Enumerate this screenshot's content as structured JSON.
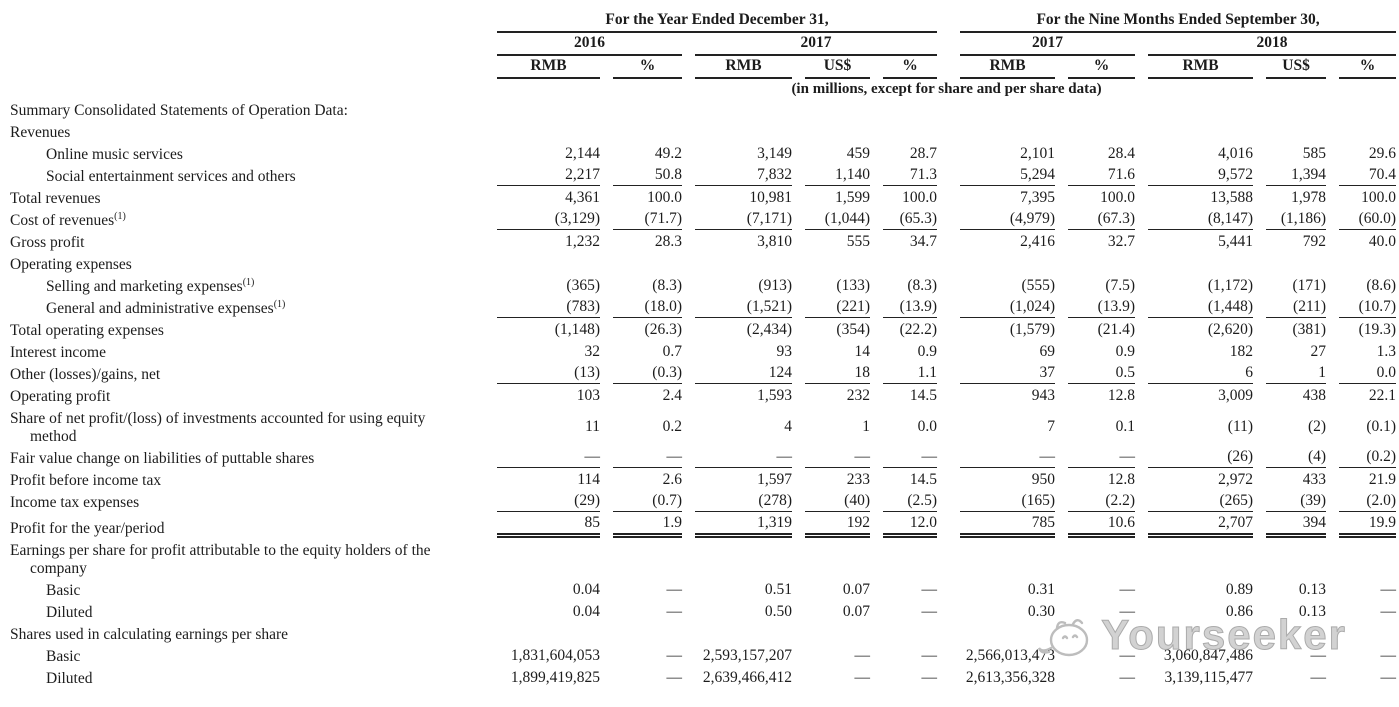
{
  "table": {
    "col_groups": [
      {
        "label": "For the Year Ended December 31,",
        "years": [
          {
            "label": "2016",
            "cols": [
              "RMB",
              "%"
            ]
          },
          {
            "label": "2017",
            "cols": [
              "RMB",
              "US$",
              "%"
            ]
          }
        ]
      },
      {
        "label": "For the Nine Months Ended September 30,",
        "years": [
          {
            "label": "2017",
            "cols": [
              "RMB",
              "%"
            ]
          },
          {
            "label": "2018",
            "cols": [
              "RMB",
              "US$",
              "%"
            ]
          }
        ]
      }
    ],
    "units_note": "(in millions, except for share and per share data)",
    "rows": [
      {
        "label": "Summary Consolidated Statements of Operation Data:",
        "style": "bold",
        "values": null
      },
      {
        "label": "Revenues",
        "style": "bold",
        "values": null
      },
      {
        "label": "Online music services",
        "style": "indent",
        "values": [
          "2,144",
          "49.2",
          "3,149",
          "459",
          "28.7",
          "2,101",
          "28.4",
          "4,016",
          "585",
          "29.6"
        ]
      },
      {
        "label": "Social entertainment services and others",
        "style": "indent",
        "underline": true,
        "values": [
          "2,217",
          "50.8",
          "7,832",
          "1,140",
          "71.3",
          "5,294",
          "71.6",
          "9,572",
          "1,394",
          "70.4"
        ]
      },
      {
        "label": "Total revenues",
        "style": "bold",
        "values": [
          "4,361",
          "100.0",
          "10,981",
          "1,599",
          "100.0",
          "7,395",
          "100.0",
          "13,588",
          "1,978",
          "100.0"
        ]
      },
      {
        "label": "Cost of revenues",
        "sup": "(1)",
        "style": "bold",
        "underline": true,
        "values": [
          "(3,129)",
          "(71.7)",
          "(7,171)",
          "(1,044)",
          "(65.3)",
          "(4,979)",
          "(67.3)",
          "(8,147)",
          "(1,186)",
          "(60.0)"
        ]
      },
      {
        "label": "Gross profit",
        "style": "bold",
        "values": [
          "1,232",
          "28.3",
          "3,810",
          "555",
          "34.7",
          "2,416",
          "32.7",
          "5,441",
          "792",
          "40.0"
        ]
      },
      {
        "label": "Operating expenses",
        "style": "plain",
        "values": null
      },
      {
        "label": "Selling and marketing expenses",
        "sup": "(1)",
        "style": "indent",
        "values": [
          "(365)",
          "(8.3)",
          "(913)",
          "(133)",
          "(8.3)",
          "(555)",
          "(7.5)",
          "(1,172)",
          "(171)",
          "(8.6)"
        ]
      },
      {
        "label": "General and administrative expenses",
        "sup": "(1)",
        "style": "indent",
        "underline": true,
        "values": [
          "(783)",
          "(18.0)",
          "(1,521)",
          "(221)",
          "(13.9)",
          "(1,024)",
          "(13.9)",
          "(1,448)",
          "(211)",
          "(10.7)"
        ]
      },
      {
        "label": "Total operating expenses",
        "style": "bold",
        "values": [
          "(1,148)",
          "(26.3)",
          "(2,434)",
          "(354)",
          "(22.2)",
          "(1,579)",
          "(21.4)",
          "(2,620)",
          "(381)",
          "(19.3)"
        ]
      },
      {
        "label": "Interest income",
        "style": "plain",
        "values": [
          "32",
          "0.7",
          "93",
          "14",
          "0.9",
          "69",
          "0.9",
          "182",
          "27",
          "1.3"
        ]
      },
      {
        "label": "Other (losses)/gains, net",
        "style": "plain",
        "underline": true,
        "values": [
          "(13)",
          "(0.3)",
          "124",
          "18",
          "1.1",
          "37",
          "0.5",
          "6",
          "1",
          "0.0"
        ]
      },
      {
        "label": "Operating profit",
        "style": "bold",
        "values": [
          "103",
          "2.4",
          "1,593",
          "232",
          "14.5",
          "943",
          "12.8",
          "3,009",
          "438",
          "22.1"
        ]
      },
      {
        "label": "Share of net profit/(loss) of investments accounted for using equity",
        "label2": "method",
        "style": "plain",
        "values": [
          "11",
          "0.2",
          "4",
          "1",
          "0.0",
          "7",
          "0.1",
          "(11)",
          "(2)",
          "(0.1)"
        ]
      },
      {
        "label": "Fair value change on liabilities of puttable shares",
        "style": "plain",
        "underline": true,
        "values": [
          "—",
          "—",
          "—",
          "—",
          "—",
          "—",
          "—",
          "(26)",
          "(4)",
          "(0.2)"
        ]
      },
      {
        "label": "Profit before income tax",
        "style": "bold",
        "values": [
          "114",
          "2.6",
          "1,597",
          "233",
          "14.5",
          "950",
          "12.8",
          "2,972",
          "433",
          "21.9"
        ]
      },
      {
        "label": "Income tax expenses",
        "style": "plain",
        "underline": true,
        "values": [
          "(29)",
          "(0.7)",
          "(278)",
          "(40)",
          "(2.5)",
          "(165)",
          "(2.2)",
          "(265)",
          "(39)",
          "(2.0)"
        ]
      },
      {
        "label": "Profit for the year/period",
        "style": "bold",
        "underline": "double",
        "values": [
          "85",
          "1.9",
          "1,319",
          "192",
          "12.0",
          "785",
          "10.6",
          "2,707",
          "394",
          "19.9"
        ]
      },
      {
        "label": "Earnings per share for profit attributable to the equity holders of the",
        "label2": "company",
        "style": "plain",
        "values": null
      },
      {
        "label": "Basic",
        "style": "indent",
        "values": [
          "0.04",
          "—",
          "0.51",
          "0.07",
          "—",
          "0.31",
          "—",
          "0.89",
          "0.13",
          "—"
        ]
      },
      {
        "label": "Diluted",
        "style": "indent",
        "values": [
          "0.04",
          "—",
          "0.50",
          "0.07",
          "—",
          "0.30",
          "—",
          "0.86",
          "0.13",
          "—"
        ]
      },
      {
        "label": "Shares used in calculating earnings per share",
        "style": "plain",
        "values": null
      },
      {
        "label": "Basic",
        "style": "indent",
        "values": [
          "1,831,604,053",
          "—",
          "2,593,157,207",
          "—",
          "—",
          "2,566,013,473",
          "—",
          "3,060,847,486",
          "—",
          "—"
        ]
      },
      {
        "label": "Diluted",
        "style": "indent",
        "values": [
          "1,899,419,825",
          "—",
          "2,639,466,412",
          "—",
          "—",
          "2,613,356,328",
          "—",
          "3,139,115,477",
          "—",
          "—"
        ]
      }
    ]
  },
  "watermark": {
    "text": "Yourseeker"
  }
}
